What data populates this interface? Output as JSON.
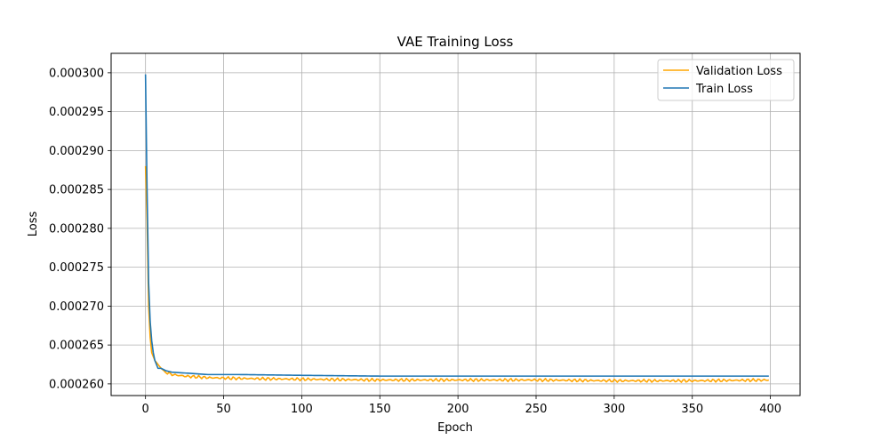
{
  "chart_data": {
    "type": "line",
    "title": "VAE Training Loss",
    "xlabel": "Epoch",
    "ylabel": "Loss",
    "xlim": [
      -22,
      419
    ],
    "ylim": [
      0.0002585,
      0.0003025
    ],
    "xticks": [
      0,
      50,
      100,
      150,
      200,
      250,
      300,
      350,
      400
    ],
    "yticks": [
      0.00026,
      0.000265,
      0.00027,
      0.000275,
      0.00028,
      0.000285,
      0.00029,
      0.000295,
      0.0003
    ],
    "ytick_labels": [
      "0.000260",
      "0.000265",
      "0.000270",
      "0.000275",
      "0.000280",
      "0.000285",
      "0.000290",
      "0.000295",
      "0.000300"
    ],
    "grid": true,
    "legend": "top-right",
    "epochs": 400,
    "series": [
      {
        "name": "Validation Loss",
        "color": "#ffa500",
        "points": [
          [
            0,
            0.000288
          ],
          [
            1,
            0.000281
          ],
          [
            2,
            0.00027
          ],
          [
            3,
            0.000266
          ],
          [
            4,
            0.000264
          ],
          [
            5,
            0.0002635
          ],
          [
            6,
            0.000263
          ],
          [
            8,
            0.0002625
          ],
          [
            10,
            0.000262
          ],
          [
            13,
            0.0002615
          ],
          [
            17,
            0.0002612
          ],
          [
            25,
            0.000261
          ],
          [
            40,
            0.0002608
          ],
          [
            60,
            0.0002607
          ],
          [
            100,
            0.0002606
          ],
          [
            150,
            0.0002605
          ],
          [
            200,
            0.0002605
          ],
          [
            250,
            0.0002605
          ],
          [
            300,
            0.0002604
          ],
          [
            350,
            0.0002604
          ],
          [
            399,
            0.0002605
          ]
        ]
      },
      {
        "name": "Train Loss",
        "color": "#1f77b4",
        "points": [
          [
            0,
            0.0002998
          ],
          [
            1,
            0.000285
          ],
          [
            2,
            0.000273
          ],
          [
            3,
            0.000268
          ],
          [
            4,
            0.0002655
          ],
          [
            5,
            0.000264
          ],
          [
            6,
            0.000263
          ],
          [
            8,
            0.000262
          ],
          [
            10,
            0.000262
          ],
          [
            13,
            0.0002617
          ],
          [
            17,
            0.0002615
          ],
          [
            25,
            0.0002614
          ],
          [
            40,
            0.0002612
          ],
          [
            60,
            0.0002612
          ],
          [
            100,
            0.0002611
          ],
          [
            150,
            0.000261
          ],
          [
            200,
            0.000261
          ],
          [
            250,
            0.000261
          ],
          [
            300,
            0.000261
          ],
          [
            350,
            0.000261
          ],
          [
            399,
            0.000261
          ]
        ]
      }
    ]
  }
}
